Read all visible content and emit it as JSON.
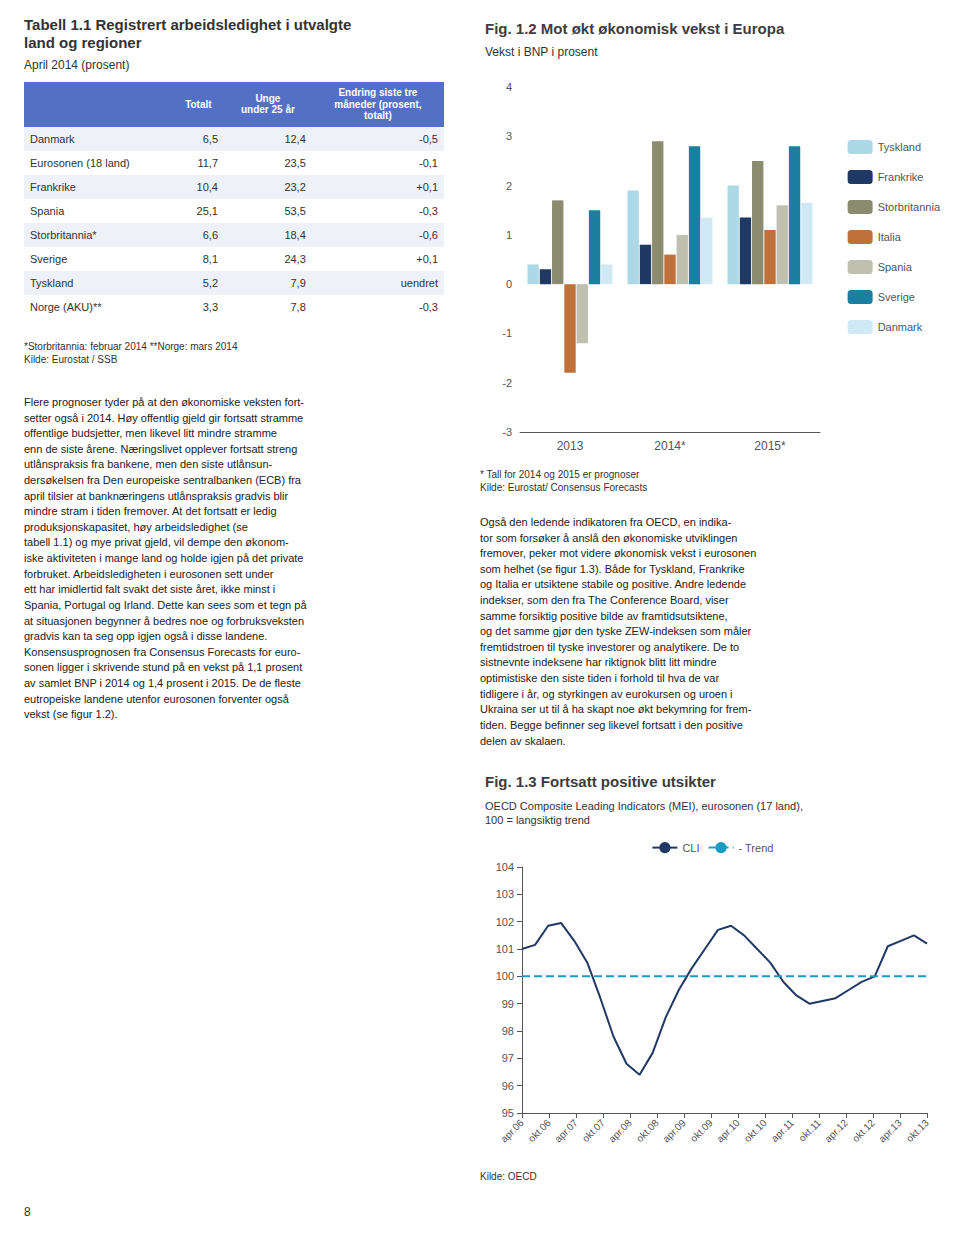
{
  "chart_data": [
    {
      "type": "table",
      "title": "Tabell 1.1 Registrert arbeidsledighet i utvalgte\nland og regioner",
      "subtitle": "April 2014 (prosent)",
      "columns": [
        null,
        "Totalt",
        "Unge\nunder 25 år",
        "Endring siste tre\nmåneder (prosent,\ntotalt)"
      ],
      "rows": [
        [
          "Danmark",
          "6,5",
          "12,4",
          "-0,5"
        ],
        [
          "Eurosonen (18 land)",
          "11,7",
          "23,5",
          "-0,1"
        ],
        [
          "Frankrike",
          "10,4",
          "23,2",
          "+0,1"
        ],
        [
          "Spania",
          "25,1",
          "53,5",
          "-0,3"
        ],
        [
          "Storbritannia*",
          "6,6",
          "18,4",
          "-0,6"
        ],
        [
          "Sverige",
          "8,1",
          "24,3",
          "+0,1"
        ],
        [
          "Tyskland",
          "5,2",
          "7,9",
          "uendret"
        ],
        [
          "Norge (AKU)**",
          "3,3",
          "7,8",
          "-0,3"
        ]
      ],
      "annotations": [
        "*Storbritannia: februar 2014  **Norge: mars 2014\nKilde: Eurostat / SSB"
      ]
    },
    {
      "type": "text",
      "text": "Flere prognoser tyder på at den økonomiske veksten fort-\nsetter også i 2014. Høy offentlig gjeld gir fortsatt stramme\noffentlige budsjetter, men likevel litt mindre stramme\nenn de siste årene. Næringslivet opplever fortsatt streng\nutlånspraksis fra bankene, men den siste utlånsun-\ndersøkelsen fra Den europeiske sentralbanken (ECB) fra\napril tilsier at banknæringens utlånspraksis gradvis blir\nmindre stram i tiden fremover. At det fortsatt er ledig\nproduksjonskapasitet, høy arbeidsledighet (se\ntabell 1.1) og mye privat gjeld, vil dempe den økonom-\niske aktiviteten i mange land og holde igjen på det private\nforbruket. Arbeidsledigheten i eurosonen sett under\nett har imidlertid falt svakt det siste året, ikke minst i\nSpania, Portugal og Irland. Dette kan sees som et tegn på\nat situasjonen begynner å bedres noe og forbruksveksten\ngradvis kan ta seg opp igjen også i disse landene.\nKonsensusprognosen fra Consensus Forecasts for euro-\nsonen ligger i skrivende stund på en vekst på 1,1 prosent\nav samlet BNP i 2014 og 1,4 prosent i 2015. De de fleste\neutropeiske landene utenfor eurosonen forventer også\nvekst (se figur 1.2)."
    },
    {
      "type": "bar",
      "title": "Fig. 1.2 Mot økt økonomisk vekst i Europa",
      "subtitle": "Vekst i BNP i prosent",
      "categories": [
        "2013",
        "2014*",
        "2015*"
      ],
      "series": [
        {
          "name": "Tyskland",
          "color": "#add8e6",
          "values": [
            0.4,
            1.9,
            2.0
          ]
        },
        {
          "name": "Frankrike",
          "color": "#1f3864",
          "values": [
            0.3,
            0.8,
            1.35
          ]
        },
        {
          "name": "Storbritannia",
          "color": "#8b8b6f",
          "values": [
            1.7,
            2.9,
            2.5
          ]
        },
        {
          "name": "Italia",
          "color": "#c0703a",
          "values": [
            -1.8,
            0.6,
            1.1
          ]
        },
        {
          "name": "Spania",
          "color": "#c0c0b0",
          "values": [
            -1.2,
            1.0,
            1.6
          ]
        },
        {
          "name": "Sverige",
          "color": "#1a7fa0",
          "values": [
            1.5,
            2.8,
            2.8
          ]
        },
        {
          "name": "Danmark",
          "color": "#d0eaf5",
          "values": [
            0.4,
            1.35,
            1.65
          ]
        }
      ],
      "ylim": [
        -3,
        4
      ],
      "yticks": [
        -3,
        -2,
        -1,
        0,
        1,
        2,
        3,
        4
      ],
      "grid": false,
      "legend": "right",
      "annotations": [
        "* Tall for 2014 og 2015 er prognoser\nKilde: Eurostat/ Consensus Forecasts"
      ]
    },
    {
      "type": "text",
      "text": "Også den ledende indikatoren fra OECD, en indika-\ntor som forsøker å anslå den økonomiske utviklingen\nfremover, peker mot videre økonomisk vekst i eurosonen\nsom helhet (se figur 1.3). Både for Tyskland, Frankrike\nog Italia er utsiktene stabile og positive. Andre ledende\nindekser, som den fra The Conference Board, viser\nsamme forsiktig positive bilde av framtidsutsiktene,\nog det samme gjør den tyske ZEW-indeksen som måler\nfremtidstroen til tyske investorer og analytikere. De to\nsistnevnte indeksene har riktignok blitt litt mindre\noptimistiske den siste tiden i forhold til hva de var\ntidligere i år, og styrkingen av eurokursen og uroen i\nUkraina ser ut til å ha skapt noe økt bekymring for frem-\ntiden. Begge befinner seg likevel fortsatt i den positive\ndelen av skalaen."
    },
    {
      "type": "line",
      "title": "Fig. 1.3 Fortsatt positive utsikter",
      "subtitle": "OECD Composite Leading Indicators (MEI), eurosonen (17 land),\n100 = langsiktig trend",
      "series": [
        {
          "name": "CLI",
          "color": "#1f3864",
          "line_style": "solid",
          "x": [
            0,
            0.4838709677419355,
            0.967741935483871,
            1.4516129032258065,
            1.935483870967742,
            2.4193548387096775,
            2.903225806451613,
            3.3870967741935485,
            3.870967741935484,
            4.354838709677419,
            4.838709677419355,
            5.32258064516129,
            5.806451612903226,
            6.290322580645161,
            6.774193548387097,
            7.258064516129032,
            7.741935483870968,
            8.225806451612904,
            8.709677419354838,
            9.193548387096774,
            9.67741935483871,
            10.161290322580646,
            10.64516129032258,
            11.129032258064516,
            11.612903225806452,
            12.096774193548388,
            12.580645161290322,
            13.064516129032258,
            13.548387096774194,
            14.03225806451613,
            14.516129032258064,
            15
          ],
          "values": [
            101.0,
            101.15,
            101.85,
            101.95,
            101.3,
            100.5,
            99.2,
            97.8,
            96.8,
            96.4,
            97.2,
            98.5,
            99.5,
            100.3,
            101.0,
            101.7,
            101.85,
            101.5,
            101.0,
            100.5,
            99.8,
            99.3,
            99.0,
            99.1,
            99.2,
            99.5,
            99.8,
            100.0,
            101.1,
            101.3,
            101.5,
            101.2
          ]
        },
        {
          "name": "- Trend",
          "color": "#1a9bbf",
          "line_style": "dashed",
          "x": [
            0,
            15
          ],
          "values": [
            100,
            100
          ]
        }
      ],
      "xlim": [
        0,
        15
      ],
      "xticks": [
        {
          "value": 0,
          "label": "apr.06"
        },
        {
          "value": 1,
          "label": "okt.06"
        },
        {
          "value": 2,
          "label": "apr.07"
        },
        {
          "value": 3,
          "label": "okt.07"
        },
        {
          "value": 4,
          "label": "apr.08"
        },
        {
          "value": 5,
          "label": "okt.08"
        },
        {
          "value": 6,
          "label": "apr.09"
        },
        {
          "value": 7,
          "label": "okt.09"
        },
        {
          "value": 8,
          "label": "apr.10"
        },
        {
          "value": 9,
          "label": "okt.10"
        },
        {
          "value": 10,
          "label": "apr.11"
        },
        {
          "value": 11,
          "label": "okt.11"
        },
        {
          "value": 12,
          "label": "apr.12"
        },
        {
          "value": 13,
          "label": "okt.12"
        },
        {
          "value": 14,
          "label": "apr.13"
        },
        {
          "value": 15,
          "label": "okt.13"
        }
      ],
      "ylim": [
        95,
        104
      ],
      "yticks": [
        95,
        96,
        97,
        98,
        99,
        100,
        101,
        102,
        103,
        104
      ],
      "grid": false,
      "legend": "top",
      "annotations": [
        "Kilde: OECD"
      ]
    },
    {
      "type": "text",
      "text": "8"
    }
  ]
}
